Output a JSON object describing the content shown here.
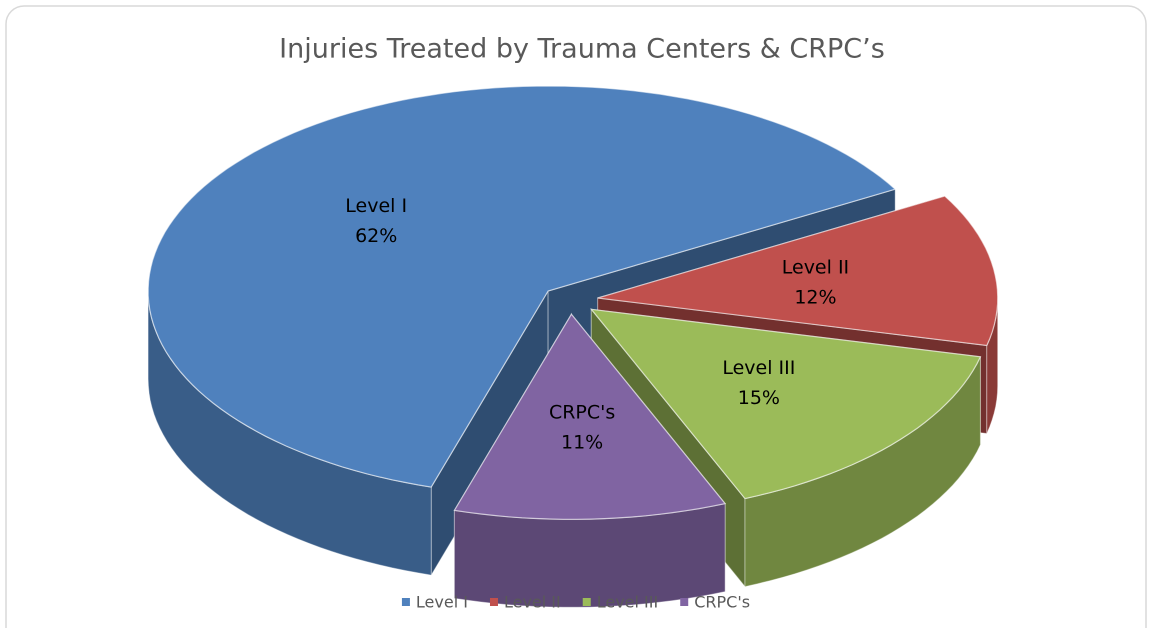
{
  "chart_data": {
    "type": "pie",
    "title": "Injuries Treated by Trauma Centers & CRPC’s",
    "categories": [
      "Level I",
      "Level II",
      "Level III",
      "CRPC's"
    ],
    "values": [
      62,
      12,
      15,
      11
    ],
    "value_labels": [
      "62%",
      "12%",
      "15%",
      "11%"
    ],
    "colors": [
      "#4f81bd",
      "#c0504d",
      "#9bbb59",
      "#8064a2"
    ],
    "legend": "bottom"
  }
}
